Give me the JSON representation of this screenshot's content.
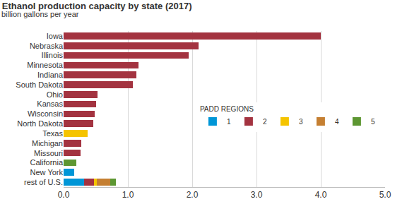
{
  "chart_data": {
    "type": "bar",
    "orientation": "horizontal",
    "stacked": true,
    "title": "Ethanol production capacity by state (2017)",
    "subtitle": "billion gallons per year",
    "categories": [
      "Iowa",
      "Nebraska",
      "Illinois",
      "Minnesota",
      "Indiana",
      "South Dakota",
      "Ohio",
      "Kansas",
      "Wisconsin",
      "North Dakota",
      "Texas",
      "Michigan",
      "Missouri",
      "California",
      "New York",
      "rest of U.S."
    ],
    "series": [
      {
        "name": "1",
        "color": "#0096d7",
        "values": [
          null,
          null,
          null,
          null,
          null,
          null,
          null,
          null,
          null,
          null,
          null,
          null,
          null,
          null,
          0.16,
          0.32
        ]
      },
      {
        "name": "2",
        "color": "#a33340",
        "values": [
          4.0,
          2.1,
          1.95,
          1.17,
          1.13,
          1.08,
          0.53,
          0.5,
          0.48,
          0.46,
          null,
          0.27,
          0.26,
          null,
          null,
          0.15
        ]
      },
      {
        "name": "3",
        "color": "#f5c400",
        "values": [
          null,
          null,
          null,
          null,
          null,
          null,
          null,
          null,
          null,
          null,
          0.37,
          null,
          null,
          null,
          null,
          0.05
        ]
      },
      {
        "name": "4",
        "color": "#c57f32",
        "values": [
          null,
          null,
          null,
          null,
          null,
          null,
          null,
          null,
          null,
          null,
          null,
          null,
          null,
          null,
          null,
          0.21
        ]
      },
      {
        "name": "5",
        "color": "#5d9732",
        "values": [
          null,
          null,
          null,
          null,
          null,
          null,
          null,
          null,
          null,
          null,
          null,
          null,
          null,
          0.2,
          null,
          0.08
        ]
      }
    ],
    "legend_title": "PADD REGIONS",
    "legend": "right",
    "xlim": [
      0,
      5
    ],
    "xticks": [
      {
        "value": 0,
        "label": "0.0"
      },
      {
        "value": 1,
        "label": "1.0"
      },
      {
        "value": 2,
        "label": "2.0"
      },
      {
        "value": 3,
        "label": "3.0"
      },
      {
        "value": 4,
        "label": "4.0"
      },
      {
        "value": 5,
        "label": "5.0"
      }
    ],
    "grid": true
  }
}
